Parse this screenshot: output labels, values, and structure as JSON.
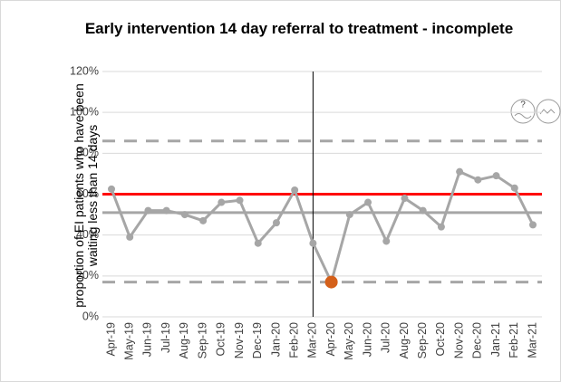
{
  "chart_data": {
    "type": "line",
    "title": "Early intervention 14 day referral to treatment - incomplete",
    "y_label": "proportion of EI patients who have been waiting less than 14 days",
    "categories": [
      "Apr-19",
      "May-19",
      "Jun-19",
      "Jul-19",
      "Aug-19",
      "Sep-19",
      "Oct-19",
      "Nov-19",
      "Dec-19",
      "Jan-20",
      "Feb-20",
      "Mar-20",
      "Apr-20",
      "May-20",
      "Jun-20",
      "Jul-20",
      "Aug-20",
      "Sep-20",
      "Oct-20",
      "Nov-20",
      "Dec-20",
      "Jan-21",
      "Feb-21",
      "Mar-21"
    ],
    "series": [
      {
        "color": "#a6a6a6",
        "values": [
          62.5,
          39,
          52,
          52,
          50,
          47,
          56,
          57,
          36,
          46,
          62,
          36,
          17,
          50,
          56,
          37,
          58,
          52,
          44,
          71,
          67,
          69,
          63,
          45
        ],
        "marker_colors": [
          "#a6a6a6",
          "#a6a6a6",
          "#a6a6a6",
          "#a6a6a6",
          "#a6a6a6",
          "#a6a6a6",
          "#a6a6a6",
          "#a6a6a6",
          "#a6a6a6",
          "#a6a6a6",
          "#a6a6a6",
          "#a6a6a6",
          "#d4601a",
          "#a6a6a6",
          "#a6a6a6",
          "#a6a6a6",
          "#a6a6a6",
          "#a6a6a6",
          "#a6a6a6",
          "#a6a6a6",
          "#a6a6a6",
          "#a6a6a6",
          "#a6a6a6",
          "#a6a6a6"
        ]
      }
    ],
    "reference_lines": [
      {
        "value": 86,
        "color": "#a6a6a6",
        "dashed": true
      },
      {
        "value": 51,
        "color": "#a6a6a6",
        "dashed": false
      },
      {
        "value": 17,
        "color": "#a6a6a6",
        "dashed": true
      },
      {
        "value": 60,
        "color": "#ff0000",
        "dashed": false
      }
    ],
    "vline_at": "Mar-20",
    "ylim": [
      0,
      120
    ],
    "yticks": [
      {
        "value": 0,
        "label": "0%"
      },
      {
        "value": 20,
        "label": "20%"
      },
      {
        "value": 40,
        "label": "40%"
      },
      {
        "value": 60,
        "label": "60%"
      },
      {
        "value": 80,
        "label": "80%"
      },
      {
        "value": 100,
        "label": "100%"
      },
      {
        "value": 120,
        "label": "120%"
      }
    ],
    "grid": true
  }
}
